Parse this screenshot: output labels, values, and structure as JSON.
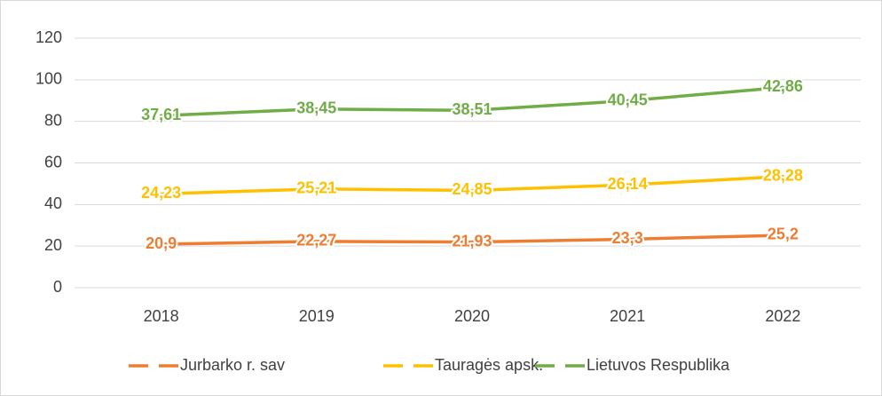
{
  "chart_data": {
    "type": "line",
    "stacked": true,
    "categories": [
      "2018",
      "2019",
      "2020",
      "2021",
      "2022"
    ],
    "series": [
      {
        "name": "Jurbarko r. sav",
        "color": "#ed7d31",
        "values": [
          20.9,
          22.27,
          21.93,
          23.3,
          25.2
        ],
        "value_labels": [
          "20,9",
          "22,27",
          "21,93",
          "23,3",
          "25,2"
        ]
      },
      {
        "name": "Tauragės apsk.",
        "color": "#ffc000",
        "values": [
          24.23,
          25.21,
          24.85,
          26.14,
          28.28
        ],
        "value_labels": [
          "24,23",
          "25,21",
          "24,85",
          "26,14",
          "28,28"
        ]
      },
      {
        "name": "Lietuvos Respublika",
        "color": "#70ad47",
        "values": [
          37.61,
          38.45,
          38.51,
          40.45,
          42.86
        ],
        "value_labels": [
          "37,61",
          "38,45",
          "38,51",
          "40,45",
          "42,86"
        ]
      }
    ],
    "ylim": [
      0,
      120
    ],
    "yticks": [
      0,
      20,
      40,
      60,
      80,
      100,
      120
    ],
    "grid": true,
    "legend": "bottom"
  }
}
